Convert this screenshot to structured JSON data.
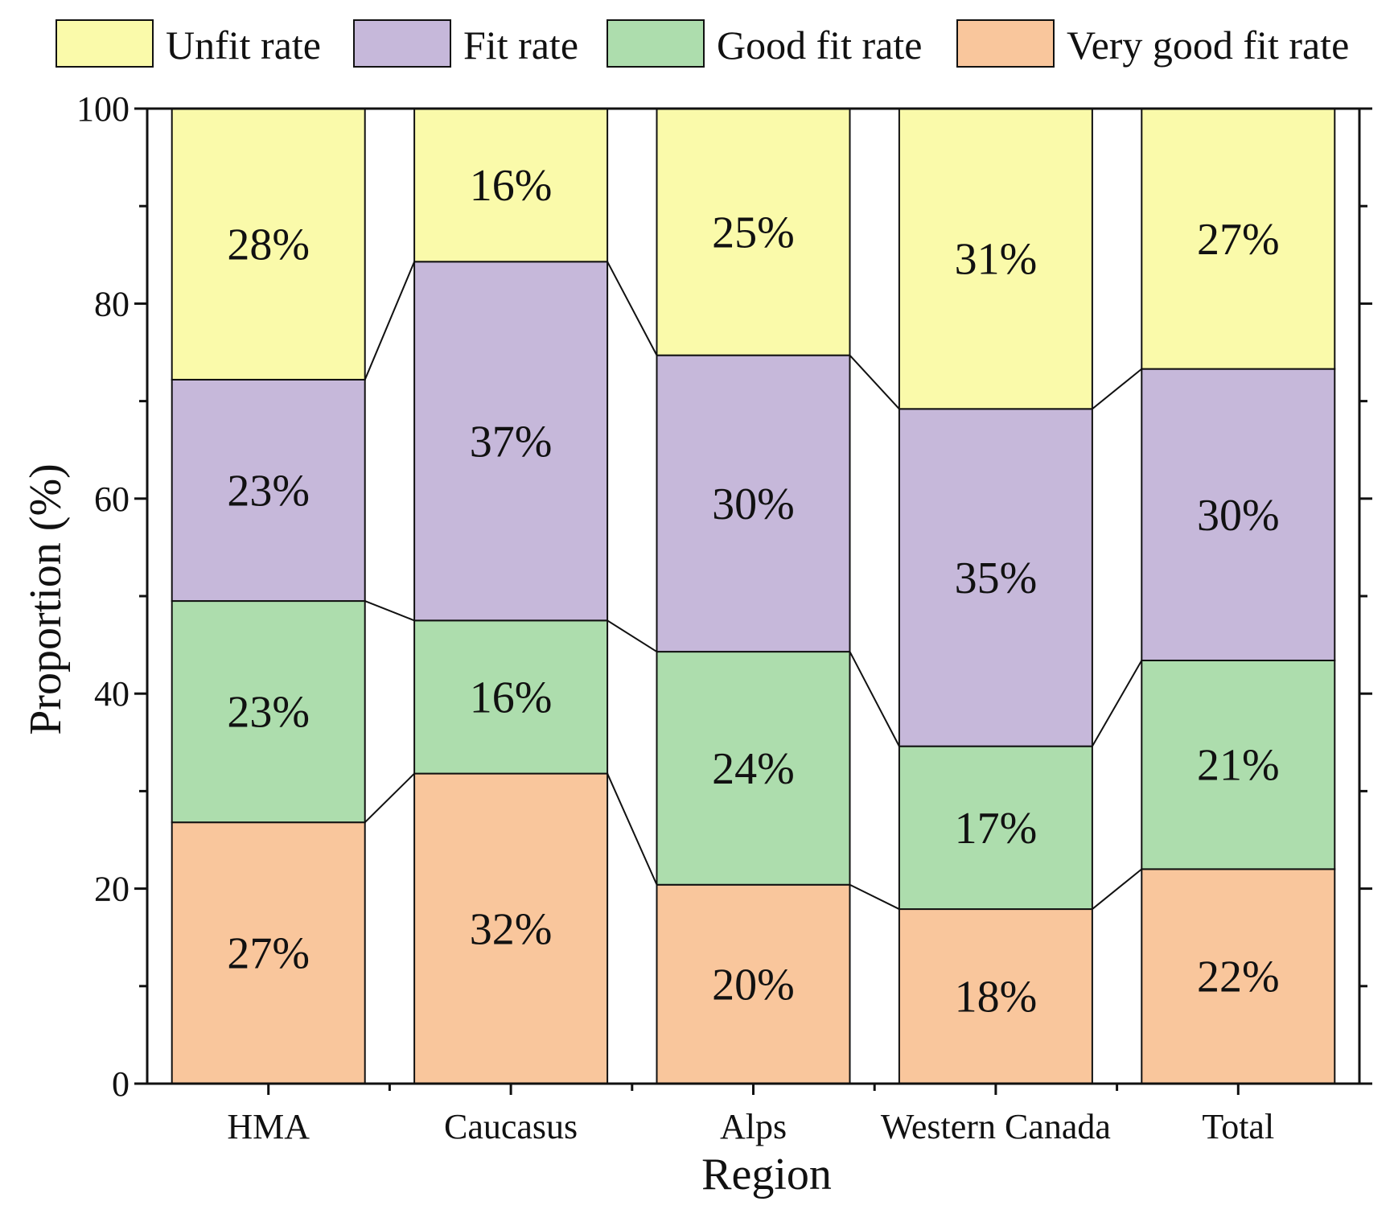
{
  "chart_data": {
    "type": "bar",
    "stacked": true,
    "title": "",
    "xlabel": "Region",
    "ylabel": "Proportion (%)",
    "ylim": [
      0,
      100
    ],
    "yticks": [
      "0",
      "20",
      "40",
      "60",
      "80",
      "100"
    ],
    "categories": [
      "HMA",
      "Caucasus",
      "Alps",
      "Western Canada",
      "Total"
    ],
    "legend_position": "top",
    "series": [
      {
        "name": "Very good fit rate",
        "color": "#F9C69C",
        "values": [
          26.8,
          31.8,
          20.4,
          17.9,
          22.0
        ],
        "labels": [
          "27%",
          "32%",
          "20%",
          "18%",
          "22%"
        ]
      },
      {
        "name": "Good fit rate",
        "color": "#ADDDAD",
        "values": [
          22.7,
          15.7,
          23.9,
          16.7,
          21.4
        ],
        "labels": [
          "23%",
          "16%",
          "24%",
          "17%",
          "21%"
        ]
      },
      {
        "name": "Fit rate",
        "color": "#C6B8DA",
        "values": [
          22.7,
          36.8,
          30.4,
          34.6,
          29.9
        ],
        "labels": [
          "23%",
          "37%",
          "30%",
          "35%",
          "30%"
        ]
      },
      {
        "name": "Unfit rate",
        "color": "#FAFAAA",
        "values": [
          27.8,
          15.7,
          25.3,
          30.8,
          26.7
        ],
        "labels": [
          "28%",
          "16%",
          "25%",
          "31%",
          "27%"
        ]
      }
    ],
    "legend_order": [
      "Unfit rate",
      "Fit rate",
      "Good fit rate",
      "Very good fit rate"
    ]
  }
}
